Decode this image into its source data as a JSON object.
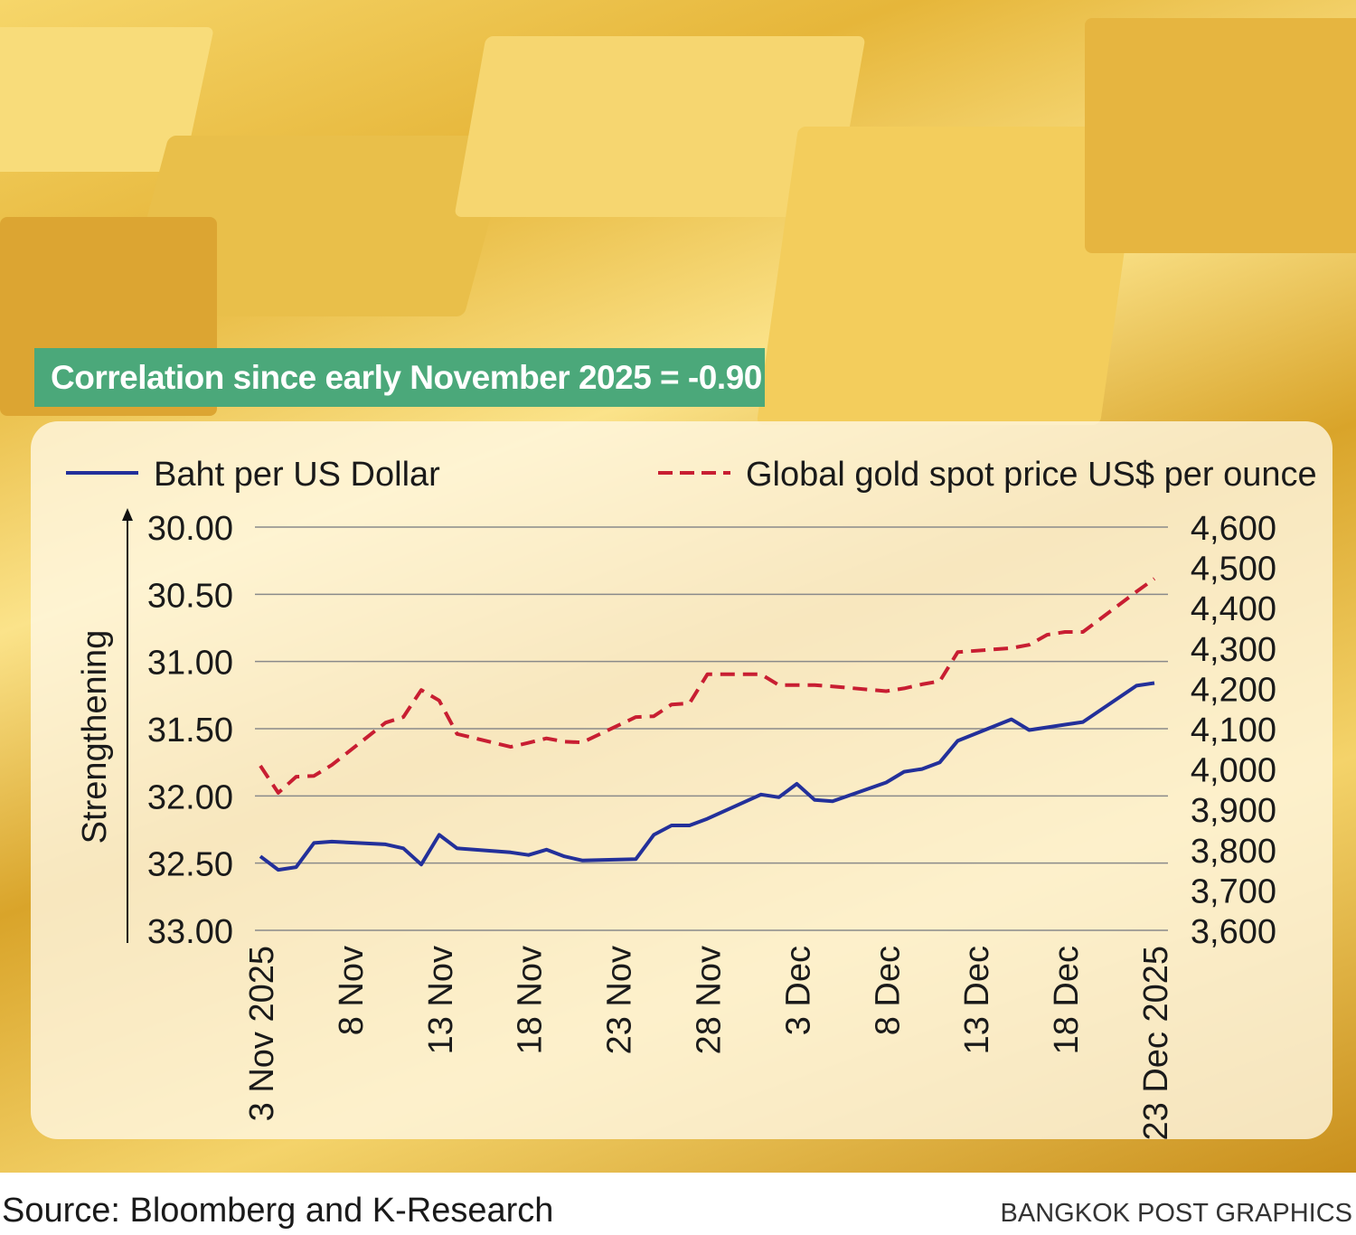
{
  "banner": "Correlation since early November 2025 = -0.90",
  "source": "Source: Bloomberg and K-Research",
  "credit": "BANGKOK POST GRAPHICS",
  "chart_data": {
    "type": "line",
    "title": "",
    "ylabel_left": "Strengthening",
    "left_axis": {
      "ylim": [
        30.0,
        33.0
      ],
      "inverted": true,
      "ticks": [
        "30.00",
        "30.50",
        "31.00",
        "31.50",
        "32.00",
        "32.50",
        "33.00"
      ]
    },
    "right_axis": {
      "ylim": [
        3600,
        4600
      ],
      "ticks": [
        "4,600",
        "4,500",
        "4,400",
        "4,300",
        "4,200",
        "4,100",
        "4,000",
        "3,900",
        "3,800",
        "3,700",
        "3,600"
      ]
    },
    "x_tick_labels": [
      {
        "date": "2025-11-03",
        "label": "3 Nov 2025"
      },
      {
        "date": "2025-11-08",
        "label": "8 Nov"
      },
      {
        "date": "2025-11-13",
        "label": "13 Nov"
      },
      {
        "date": "2025-11-18",
        "label": "18 Nov"
      },
      {
        "date": "2025-11-23",
        "label": "23 Nov"
      },
      {
        "date": "2025-11-28",
        "label": "28 Nov"
      },
      {
        "date": "2025-12-03",
        "label": "3 Dec"
      },
      {
        "date": "2025-12-08",
        "label": "8 Dec"
      },
      {
        "date": "2025-12-13",
        "label": "13 Dec"
      },
      {
        "date": "2025-12-18",
        "label": "18 Dec"
      },
      {
        "date": "2025-12-23",
        "label": "23 Dec 2025"
      }
    ],
    "grid": true,
    "legend_placement": "top",
    "x": [
      "2025-11-03",
      "2025-11-04",
      "2025-11-05",
      "2025-11-06",
      "2025-11-07",
      "2025-11-10",
      "2025-11-11",
      "2025-11-12",
      "2025-11-13",
      "2025-11-14",
      "2025-11-17",
      "2025-11-18",
      "2025-11-19",
      "2025-11-20",
      "2025-11-21",
      "2025-11-24",
      "2025-11-25",
      "2025-11-26",
      "2025-11-27",
      "2025-11-28",
      "2025-12-01",
      "2025-12-02",
      "2025-12-03",
      "2025-12-04",
      "2025-12-05",
      "2025-12-08",
      "2025-12-09",
      "2025-12-10",
      "2025-12-11",
      "2025-12-12",
      "2025-12-15",
      "2025-12-16",
      "2025-12-17",
      "2025-12-18",
      "2025-12-19",
      "2025-12-22",
      "2025-12-23"
    ],
    "series": [
      {
        "name": "Baht per US Dollar",
        "axis": "left",
        "color": "#23309a",
        "style": "solid",
        "values": [
          32.45,
          32.55,
          32.53,
          32.35,
          32.34,
          32.36,
          32.39,
          32.51,
          32.29,
          32.39,
          32.42,
          32.44,
          32.4,
          32.45,
          32.48,
          32.47,
          32.29,
          32.22,
          32.22,
          32.17,
          31.99,
          32.01,
          31.91,
          32.03,
          32.04,
          31.9,
          31.82,
          31.8,
          31.75,
          31.59,
          31.43,
          31.51,
          31.49,
          31.47,
          31.45,
          31.18,
          31.16
        ]
      },
      {
        "name": "Global gold spot price US$ per ounce",
        "axis": "right",
        "color": "#c81e32",
        "style": "dashed",
        "values": [
          4008,
          3941,
          3981,
          3983,
          4010,
          4115,
          4129,
          4196,
          4170,
          4087,
          4055,
          4065,
          4076,
          4068,
          4066,
          4129,
          4131,
          4160,
          4163,
          4235,
          4235,
          4208,
          4208,
          4208,
          4205,
          4193,
          4200,
          4210,
          4218,
          4290,
          4300,
          4308,
          4333,
          4340,
          4340,
          4440,
          4472
        ]
      }
    ]
  }
}
